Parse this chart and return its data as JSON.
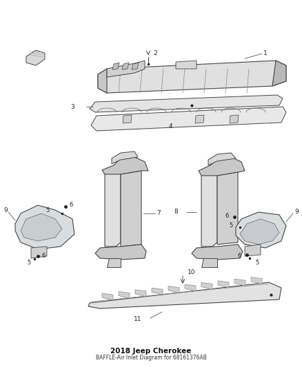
{
  "title": "2018 Jeep Cherokee",
  "subtitle": "BAFFLE-Air Inlet Diagram for 68161376AB",
  "background_color": "#ffffff",
  "lc": "#444444",
  "fc_light": "#e8e8e8",
  "fc_mid": "#d0d0d0",
  "fc_dark": "#b8b8b8",
  "figsize": [
    4.38,
    5.33
  ],
  "dpi": 100
}
